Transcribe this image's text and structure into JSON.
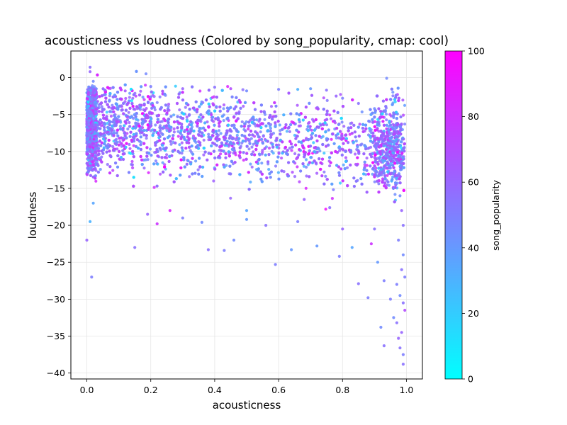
{
  "chart_data": {
    "type": "scatter",
    "title": "acousticness vs loudness (Colored by song_popularity, cmap: cool)",
    "xlabel": "acousticness",
    "ylabel": "loudness",
    "xlim": [
      -0.05,
      1.05
    ],
    "ylim": [
      -40.8,
      3.6
    ],
    "xticks": [
      0.0,
      0.2,
      0.4,
      0.6,
      0.8,
      1.0
    ],
    "xtick_labels": [
      "0.0",
      "0.2",
      "0.4",
      "0.6",
      "0.8",
      "1.0"
    ],
    "yticks": [
      0,
      -5,
      -10,
      -15,
      -20,
      -25,
      -30,
      -35,
      -40
    ],
    "ytick_labels": [
      "0",
      "−5",
      "−10",
      "−15",
      "−20",
      "−25",
      "−30",
      "−35",
      "−40"
    ],
    "grid": true,
    "colormap": "cool",
    "colorbar": {
      "label": "song_popularity",
      "range": [
        0,
        100
      ],
      "ticks": [
        0,
        20,
        40,
        60,
        80,
        100
      ],
      "tick_labels": [
        "0",
        "20",
        "40",
        "60",
        "80",
        "100"
      ],
      "color_low": "#00ffff",
      "color_high": "#ff00ff"
    },
    "points": [
      [
        0.01,
        1.4,
        55
      ],
      [
        0.01,
        0.8,
        60
      ],
      [
        0.02,
        -0.5,
        45
      ],
      [
        0.005,
        -2.0,
        70
      ],
      [
        0.0,
        -22.0,
        60
      ],
      [
        0.01,
        -19.5,
        30
      ],
      [
        0.02,
        -17.0,
        35
      ],
      [
        0.015,
        -27.0,
        50
      ],
      [
        0.15,
        -23.0,
        55
      ],
      [
        0.22,
        -19.8,
        80
      ],
      [
        0.19,
        -18.5,
        60
      ],
      [
        0.26,
        -18.0,
        85
      ],
      [
        0.3,
        -19.0,
        50
      ],
      [
        0.38,
        -23.3,
        55
      ],
      [
        0.36,
        -19.6,
        45
      ],
      [
        0.43,
        -23.4,
        50
      ],
      [
        0.46,
        -22.0,
        45
      ],
      [
        0.5,
        -19.2,
        40
      ],
      [
        0.5,
        -18.0,
        35
      ],
      [
        0.56,
        -20.0,
        55
      ],
      [
        0.59,
        -25.3,
        50
      ],
      [
        0.64,
        -23.3,
        40
      ],
      [
        0.66,
        -19.5,
        50
      ],
      [
        0.68,
        -16.5,
        60
      ],
      [
        0.72,
        -22.8,
        40
      ],
      [
        0.76,
        -17.6,
        55
      ],
      [
        0.79,
        -24.2,
        50
      ],
      [
        0.8,
        -20.5,
        60
      ],
      [
        0.83,
        -23.0,
        35
      ],
      [
        0.85,
        -27.9,
        55
      ],
      [
        0.88,
        -29.8,
        50
      ],
      [
        0.89,
        -22.5,
        80
      ],
      [
        0.9,
        -20.5,
        55
      ],
      [
        0.91,
        -25.0,
        40
      ],
      [
        0.92,
        -33.8,
        45
      ],
      [
        0.93,
        -27.5,
        50
      ],
      [
        0.93,
        -36.3,
        55
      ],
      [
        0.95,
        -30.0,
        50
      ],
      [
        0.96,
        -32.5,
        45
      ],
      [
        0.97,
        -33.2,
        55
      ],
      [
        0.975,
        -35.3,
        60
      ],
      [
        0.98,
        -36.6,
        55
      ],
      [
        0.985,
        -34.5,
        60
      ],
      [
        0.99,
        -38.8,
        55
      ],
      [
        0.99,
        -37.5,
        50
      ],
      [
        0.995,
        -31.5,
        70
      ],
      [
        0.98,
        -29.5,
        45
      ],
      [
        0.97,
        -28.0,
        50
      ],
      [
        0.985,
        -26.0,
        55
      ],
      [
        0.99,
        -24.0,
        45
      ],
      [
        0.975,
        -22.0,
        50
      ],
      [
        0.99,
        -20.0,
        55
      ],
      [
        0.985,
        -18.0,
        60
      ],
      [
        0.98,
        -16.0,
        45
      ],
      [
        0.995,
        -27.0,
        50
      ],
      [
        0.99,
        -30.5,
        55
      ],
      [
        0.12,
        -1.8,
        65
      ],
      [
        0.2,
        -1.2,
        50
      ],
      [
        0.3,
        -1.5,
        60
      ],
      [
        0.4,
        -1.3,
        55
      ],
      [
        0.45,
        -1.5,
        70
      ],
      [
        0.5,
        -1.8,
        45
      ],
      [
        0.6,
        -1.6,
        50
      ],
      [
        0.66,
        -1.6,
        30
      ],
      [
        0.7,
        -1.5,
        40
      ],
      [
        0.75,
        -1.7,
        55
      ],
      [
        0.78,
        -2.5,
        60
      ],
      [
        0.8,
        -2.8,
        50
      ],
      [
        0.85,
        -3.5,
        55
      ],
      [
        0.9,
        -4.2,
        45
      ],
      [
        0.93,
        -4.5,
        50
      ],
      [
        0.96,
        -5.4,
        45
      ]
    ]
  }
}
